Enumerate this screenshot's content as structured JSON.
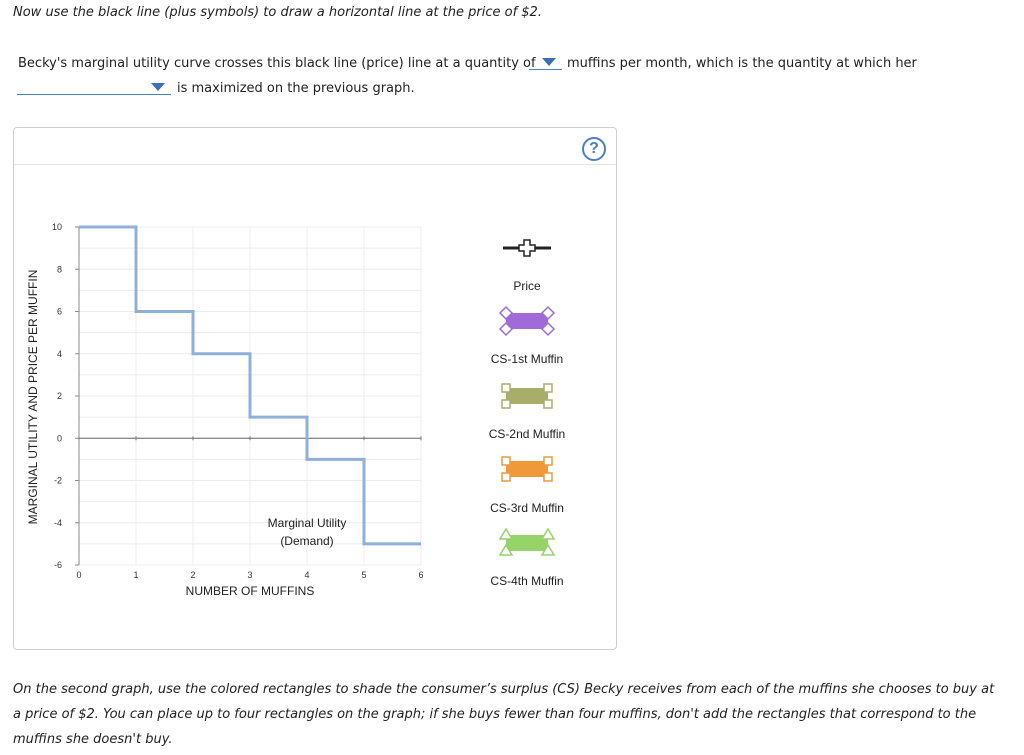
{
  "instructions": {
    "top": "Now use the black line (plus symbols) to draw a horizontal line at the price of $2.",
    "sentence_part1": "Becky's marginal utility curve crosses this black line (price) line at a quantity of",
    "sentence_part2": "muffins per month, which is the quantity at which her",
    "sentence_part3": "is maximized on the previous graph.",
    "bottom": "On the second graph, use the colored rectangles to shade the consumer’s surplus (CS) Becky receives from each of the muffins she chooses to buy at a price of $2. You can place up to four rectangles on the graph; if she buys fewer than four muffins, don't add the rectangles that correspond to the muffins she doesn't buy."
  },
  "dropdowns": {
    "quantity": {
      "selected": ""
    },
    "maximized": {
      "selected": ""
    }
  },
  "help": {
    "label": "?",
    "icon": "help-icon"
  },
  "chart_data": {
    "type": "line",
    "xlabel": "NUMBER OF MUFFINS",
    "ylabel": "MARGINAL UTILITY AND PRICE PER MUFFIN",
    "xlim": [
      0,
      6
    ],
    "ylim": [
      -6,
      10
    ],
    "x_ticks": [
      0,
      1,
      2,
      3,
      4,
      5,
      6
    ],
    "y_ticks": [
      10,
      8,
      6,
      4,
      2,
      0,
      -2,
      -4,
      -6
    ],
    "grid": true,
    "series": [
      {
        "name": "Marginal Utility (Demand)",
        "label_lines": [
          "Marginal Utility",
          "(Demand)"
        ],
        "color": "#8eb0d9",
        "step_points": [
          [
            0,
            10
          ],
          [
            1,
            10
          ],
          [
            1,
            6
          ],
          [
            2,
            6
          ],
          [
            2,
            4
          ],
          [
            3,
            4
          ],
          [
            3,
            1
          ],
          [
            4,
            1
          ],
          [
            4,
            -1
          ],
          [
            5,
            -1
          ],
          [
            5,
            -5
          ],
          [
            6,
            -5
          ]
        ]
      }
    ],
    "zero_line": {
      "y": 0,
      "color": "#666666"
    }
  },
  "palette": [
    {
      "name": "Price",
      "color": "#222222",
      "marker": "cross"
    },
    {
      "name": "CS-1st Muffin",
      "color": "#a06ad8",
      "marker": "diamond"
    },
    {
      "name": "CS-2nd Muffin",
      "color": "#a8ad6a",
      "marker": "square"
    },
    {
      "name": "CS-3rd Muffin",
      "color": "#f0993a",
      "marker": "square"
    },
    {
      "name": "CS-4th Muffin",
      "color": "#96d46a",
      "marker": "triangle"
    }
  ]
}
